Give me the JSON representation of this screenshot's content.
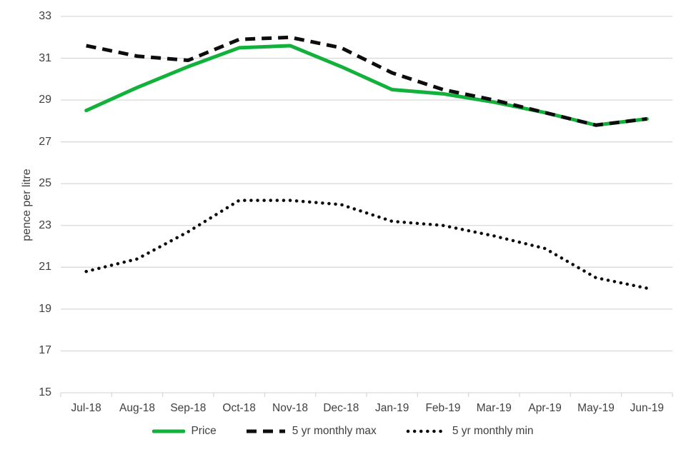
{
  "chart_data": {
    "type": "line",
    "title": "",
    "xlabel": "",
    "ylabel": "pence per litre",
    "categories": [
      "Jul-18",
      "Aug-18",
      "Sep-18",
      "Oct-18",
      "Nov-18",
      "Dec-18",
      "Jan-19",
      "Feb-19",
      "Mar-19",
      "Apr-19",
      "May-19",
      "Jun-19"
    ],
    "yticks": [
      15,
      17,
      19,
      21,
      23,
      25,
      27,
      29,
      31,
      33
    ],
    "ylim": [
      15,
      33
    ],
    "grid": "horizontal",
    "legend_position": "bottom",
    "colors": {
      "axis": "#d9d9d9",
      "tick_label": "#404040",
      "price_green": "#12b13c",
      "black_line": "#0d0d0d"
    },
    "series": [
      {
        "name": "Price",
        "style": "solid",
        "color": "#12b13c",
        "values": [
          28.5,
          29.6,
          30.6,
          31.5,
          31.6,
          30.6,
          29.5,
          29.3,
          28.9,
          28.4,
          27.8,
          28.1
        ]
      },
      {
        "name": "5 yr monthly max",
        "style": "dashed",
        "color": "#0d0d0d",
        "values": [
          31.6,
          31.1,
          30.9,
          31.9,
          32.0,
          31.5,
          30.3,
          29.5,
          29.0,
          28.4,
          27.8,
          28.1
        ]
      },
      {
        "name": "5 yr monthly min",
        "style": "dotted",
        "color": "#0d0d0d",
        "values": [
          20.8,
          21.4,
          22.7,
          24.2,
          24.2,
          24.0,
          23.2,
          23.0,
          22.5,
          21.9,
          20.5,
          20.0
        ]
      }
    ]
  }
}
